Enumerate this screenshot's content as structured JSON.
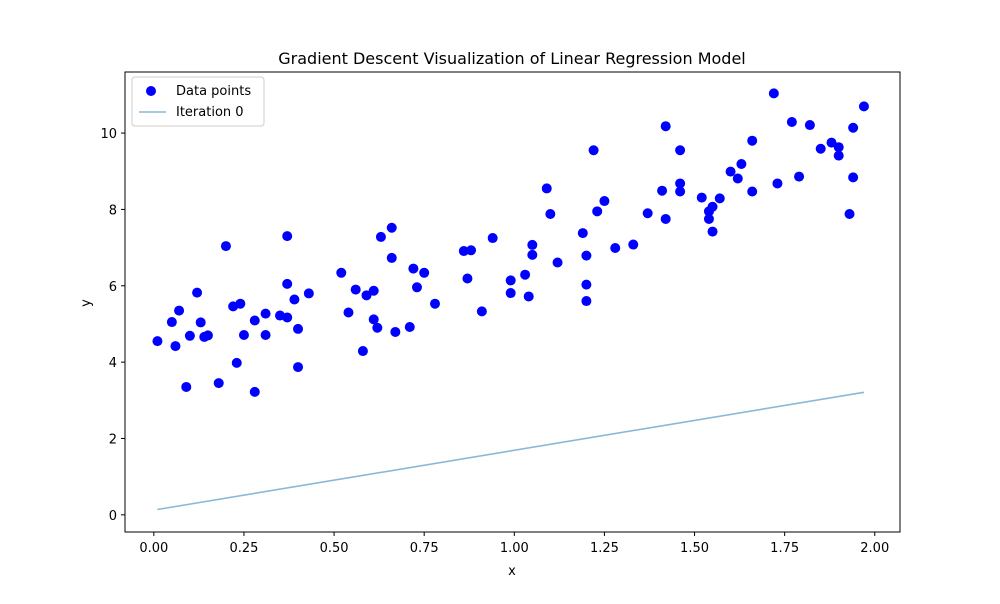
{
  "chart_data": {
    "type": "scatter",
    "title": "Gradient Descent Visualization of Linear Regression Model",
    "xlabel": "x",
    "ylabel": "y",
    "xlim": [
      -0.08,
      2.07
    ],
    "ylim": [
      -0.45,
      11.6
    ],
    "xticks": [
      0.0,
      0.25,
      0.5,
      0.75,
      1.0,
      1.25,
      1.5,
      1.75,
      2.0
    ],
    "xtick_labels": [
      "0.00",
      "0.25",
      "0.50",
      "0.75",
      "1.00",
      "1.25",
      "1.50",
      "1.75",
      "2.00"
    ],
    "yticks": [
      0,
      2,
      4,
      6,
      8,
      10
    ],
    "ytick_labels": [
      "0",
      "2",
      "4",
      "6",
      "8",
      "10"
    ],
    "grid": false,
    "legend_position": "top-left",
    "series": [
      {
        "name": "Data points",
        "kind": "scatter",
        "color": "#0000ff",
        "points": [
          [
            0.01,
            4.55
          ],
          [
            0.05,
            5.05
          ],
          [
            0.06,
            4.42
          ],
          [
            0.07,
            5.35
          ],
          [
            0.09,
            3.35
          ],
          [
            0.1,
            4.69
          ],
          [
            0.12,
            5.82
          ],
          [
            0.13,
            5.04
          ],
          [
            0.14,
            4.66
          ],
          [
            0.15,
            4.7
          ],
          [
            0.18,
            3.45
          ],
          [
            0.2,
            7.04
          ],
          [
            0.22,
            5.46
          ],
          [
            0.23,
            3.98
          ],
          [
            0.24,
            5.53
          ],
          [
            0.25,
            4.71
          ],
          [
            0.28,
            5.09
          ],
          [
            0.28,
            3.22
          ],
          [
            0.31,
            5.27
          ],
          [
            0.31,
            4.71
          ],
          [
            0.35,
            5.22
          ],
          [
            0.37,
            5.17
          ],
          [
            0.37,
            6.05
          ],
          [
            0.37,
            7.3
          ],
          [
            0.39,
            5.64
          ],
          [
            0.4,
            4.87
          ],
          [
            0.4,
            3.87
          ],
          [
            0.43,
            5.8
          ],
          [
            0.52,
            6.34
          ],
          [
            0.54,
            5.3
          ],
          [
            0.56,
            5.9
          ],
          [
            0.58,
            4.29
          ],
          [
            0.59,
            5.75
          ],
          [
            0.61,
            5.12
          ],
          [
            0.61,
            5.87
          ],
          [
            0.62,
            4.9
          ],
          [
            0.63,
            7.28
          ],
          [
            0.66,
            7.52
          ],
          [
            0.66,
            6.73
          ],
          [
            0.67,
            4.79
          ],
          [
            0.71,
            4.92
          ],
          [
            0.72,
            6.45
          ],
          [
            0.73,
            5.96
          ],
          [
            0.75,
            6.34
          ],
          [
            0.78,
            5.53
          ],
          [
            0.86,
            6.91
          ],
          [
            0.87,
            6.19
          ],
          [
            0.88,
            6.93
          ],
          [
            0.91,
            5.33
          ],
          [
            0.94,
            7.25
          ],
          [
            0.99,
            6.14
          ],
          [
            0.99,
            5.81
          ],
          [
            1.03,
            6.29
          ],
          [
            1.04,
            5.72
          ],
          [
            1.05,
            6.81
          ],
          [
            1.05,
            7.07
          ],
          [
            1.09,
            8.55
          ],
          [
            1.1,
            7.88
          ],
          [
            1.12,
            6.61
          ],
          [
            1.19,
            7.38
          ],
          [
            1.2,
            6.03
          ],
          [
            1.2,
            5.6
          ],
          [
            1.2,
            6.79
          ],
          [
            1.22,
            9.55
          ],
          [
            1.23,
            7.95
          ],
          [
            1.25,
            8.22
          ],
          [
            1.28,
            6.99
          ],
          [
            1.33,
            7.08
          ],
          [
            1.37,
            7.9
          ],
          [
            1.41,
            8.49
          ],
          [
            1.42,
            7.75
          ],
          [
            1.42,
            10.18
          ],
          [
            1.46,
            9.55
          ],
          [
            1.46,
            8.68
          ],
          [
            1.46,
            8.47
          ],
          [
            1.52,
            8.31
          ],
          [
            1.54,
            7.95
          ],
          [
            1.54,
            7.75
          ],
          [
            1.55,
            7.42
          ],
          [
            1.55,
            8.07
          ],
          [
            1.57,
            8.29
          ],
          [
            1.6,
            8.99
          ],
          [
            1.62,
            8.81
          ],
          [
            1.63,
            9.19
          ],
          [
            1.66,
            9.8
          ],
          [
            1.66,
            8.47
          ],
          [
            1.72,
            11.04
          ],
          [
            1.73,
            8.68
          ],
          [
            1.77,
            10.29
          ],
          [
            1.79,
            8.86
          ],
          [
            1.82,
            10.21
          ],
          [
            1.85,
            9.59
          ],
          [
            1.88,
            9.75
          ],
          [
            1.9,
            9.63
          ],
          [
            1.9,
            9.41
          ],
          [
            1.93,
            7.88
          ],
          [
            1.94,
            8.84
          ],
          [
            1.94,
            10.14
          ],
          [
            1.97,
            10.7
          ]
        ]
      },
      {
        "name": "Iteration 0",
        "kind": "line",
        "color": "#8ab8d8",
        "x": [
          0.01,
          1.97
        ],
        "y": [
          0.14,
          3.21
        ]
      }
    ]
  }
}
